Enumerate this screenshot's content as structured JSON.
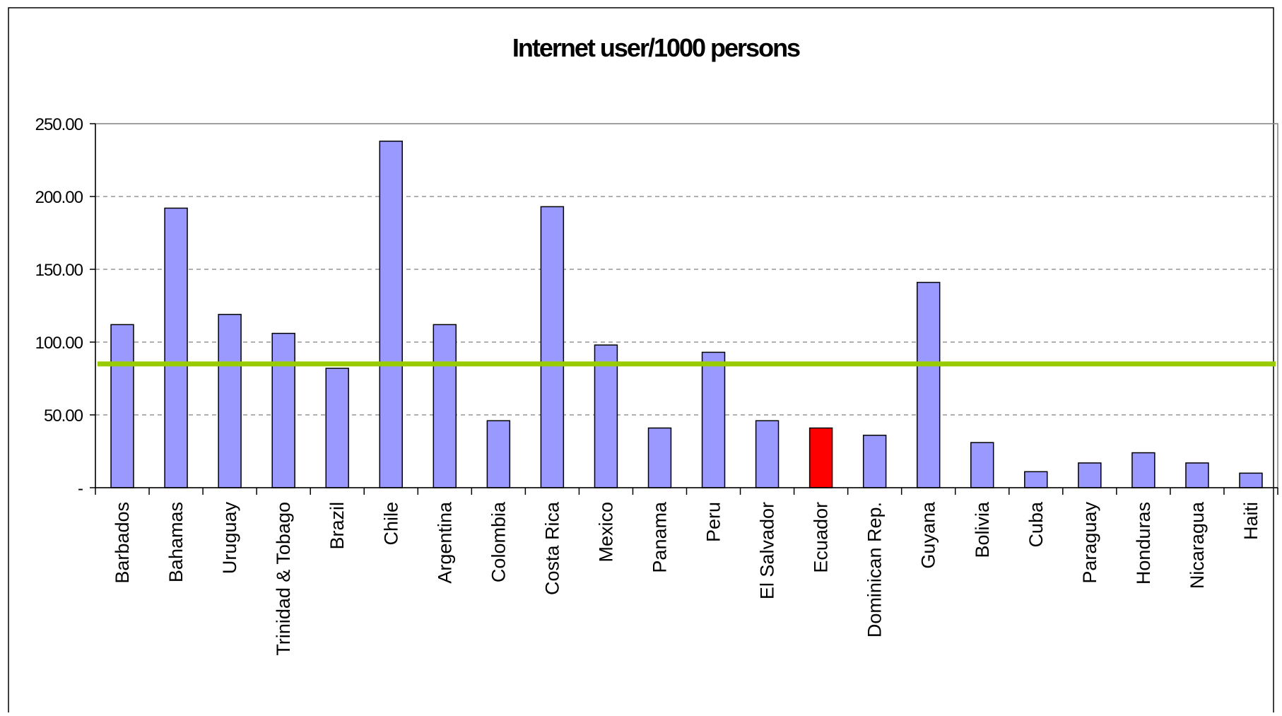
{
  "chart_data": {
    "type": "bar",
    "title": "Internet user/1000 persons",
    "xlabel": "",
    "ylabel": "",
    "ylim": [
      0,
      250
    ],
    "yticks": [
      0,
      50,
      100,
      150,
      200,
      250
    ],
    "ytick_labels": [
      "-",
      "50.00",
      "100.00",
      "150.00",
      "200.00",
      "250.00"
    ],
    "grid": true,
    "legend": "none",
    "categories": [
      "Barbados",
      "Bahamas",
      "Uruguay",
      "Trinidad & Tobago",
      "Brazil",
      "Chile",
      "Argentina",
      "Colombia",
      "Costa Rica",
      "Mexico",
      "Panama",
      "Peru",
      "El Salvador",
      "Ecuador",
      "Dominican Rep.",
      "Guyana",
      "Bolivia",
      "Cuba",
      "Paraguay",
      "Honduras",
      "Nicaragua",
      "Haiti"
    ],
    "values": [
      112,
      192,
      119,
      106,
      82,
      238,
      112,
      46,
      193,
      98,
      41,
      93,
      46,
      41,
      36,
      141,
      31,
      11,
      17,
      24,
      17,
      10
    ],
    "highlight_category": "Ecuador",
    "reference_line": {
      "value": 85
    },
    "colors": {
      "bar": "#9999ff",
      "highlight": "#ff0000",
      "reference_line": "#99cc00",
      "bar_outline": "#000000",
      "grid": "#808080"
    }
  }
}
